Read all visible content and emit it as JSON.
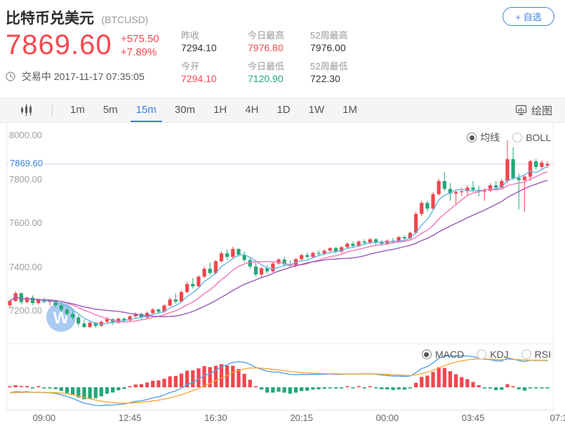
{
  "header": {
    "title": "比特币兑美元",
    "symbol": "(BTCUSD)",
    "price": "7869.60",
    "change": "+575.50",
    "change_pct": "+7.89%",
    "status": "交易中 2017-11-17 07:35:05",
    "watchlist_button": "+ 自选",
    "stats": [
      {
        "label": "昨收",
        "value": "7294.10",
        "color": "#333333"
      },
      {
        "label": "今日最高",
        "value": "7976.80",
        "color": "#f8474e"
      },
      {
        "label": "52周最高",
        "value": "7976.00",
        "color": "#333333"
      },
      {
        "label": "今开",
        "value": "7294.10",
        "color": "#f8474e"
      },
      {
        "label": "今日最低",
        "value": "7120.90",
        "color": "#23a776"
      },
      {
        "label": "52周最低",
        "value": "722.30",
        "color": "#333333"
      }
    ]
  },
  "toolbar": {
    "timeframes": [
      "1m",
      "5m",
      "15m",
      "30m",
      "1H",
      "4H",
      "1D",
      "1W",
      "1M"
    ],
    "selected_timeframe": "15m",
    "draw_label": "绘图"
  },
  "chart": {
    "overlay_options": [
      "均线",
      "BOLL"
    ],
    "overlay_selected": "均线",
    "indicator_options": [
      "MACD",
      "KDJ",
      "RSI"
    ],
    "indicator_selected": "MACD"
  },
  "icons": {
    "clock": "clock-icon",
    "candlestick": "candlestick-chart-icon",
    "draw": "monitor-chart-icon",
    "watermark": "broker-logo-watermark"
  },
  "colors": {
    "up": "#f0464e",
    "down": "#23a776",
    "accent_blue": "#3c7fdb",
    "price_red": "#f8474e",
    "ma5": "#63b6e8",
    "ma10": "#f276b8",
    "ma20": "#9a57ba",
    "macd_dif": "#55a0e6",
    "macd_dea": "#f6a83c",
    "cur_price_line": "#c3d4ea",
    "watermark_blue": "rgba(98,158,229,0.55)"
  },
  "chart_data": {
    "type": "candlestick",
    "symbol": "BTCUSD",
    "interval": "15m",
    "title": "比特币兑美元 (BTCUSD) 15m K线 + MACD",
    "ylim": [
      7050,
      8025
    ],
    "y_ticks": [
      "8000.00",
      "7800.00",
      "7600.00",
      "7400.00",
      "7200.00"
    ],
    "y_tick_values": [
      8000,
      7800,
      7600,
      7400,
      7200
    ],
    "current_price": 7869.6,
    "current_price_label": "7869.60",
    "legend_position": "top-right",
    "x_axis_labels": [
      {
        "label": "09:00",
        "index": 6
      },
      {
        "label": "12:45",
        "index": 21
      },
      {
        "label": "16:30",
        "index": 36
      },
      {
        "label": "20:15",
        "index": 51
      },
      {
        "label": "00:00",
        "index": 66
      },
      {
        "label": "03:45",
        "index": 81
      },
      {
        "label": "07:3",
        "index": 96
      }
    ],
    "overlays": {
      "ma_periods": [
        5,
        10,
        20
      ]
    },
    "indicator": {
      "name": "MACD",
      "params": [
        12,
        26,
        9
      ]
    },
    "candles_ohlc": [
      [
        7225,
        7250,
        7210,
        7245
      ],
      [
        7245,
        7290,
        7240,
        7280
      ],
      [
        7280,
        7285,
        7230,
        7240
      ],
      [
        7240,
        7265,
        7235,
        7260
      ],
      [
        7260,
        7270,
        7225,
        7235
      ],
      [
        7235,
        7255,
        7228,
        7250
      ],
      [
        7250,
        7260,
        7235,
        7240
      ],
      [
        7240,
        7252,
        7225,
        7246
      ],
      [
        7246,
        7250,
        7215,
        7225
      ],
      [
        7225,
        7235,
        7195,
        7205
      ],
      [
        7205,
        7215,
        7175,
        7185
      ],
      [
        7185,
        7200,
        7158,
        7170
      ],
      [
        7170,
        7180,
        7130,
        7142
      ],
      [
        7142,
        7160,
        7121,
        7126
      ],
      [
        7126,
        7152,
        7121,
        7146
      ],
      [
        7146,
        7150,
        7122,
        7132
      ],
      [
        7132,
        7156,
        7126,
        7150
      ],
      [
        7150,
        7172,
        7142,
        7162
      ],
      [
        7162,
        7166,
        7136,
        7146
      ],
      [
        7146,
        7170,
        7141,
        7164
      ],
      [
        7164,
        7170,
        7146,
        7156
      ],
      [
        7156,
        7180,
        7150,
        7175
      ],
      [
        7175,
        7192,
        7166,
        7186
      ],
      [
        7186,
        7190,
        7160,
        7170
      ],
      [
        7170,
        7196,
        7164,
        7190
      ],
      [
        7190,
        7212,
        7182,
        7206
      ],
      [
        7206,
        7212,
        7186,
        7196
      ],
      [
        7196,
        7230,
        7190,
        7224
      ],
      [
        7224,
        7262,
        7220,
        7252
      ],
      [
        7252,
        7280,
        7232,
        7242
      ],
      [
        7242,
        7292,
        7238,
        7286
      ],
      [
        7286,
        7332,
        7280,
        7322
      ],
      [
        7322,
        7350,
        7302,
        7312
      ],
      [
        7312,
        7362,
        7306,
        7356
      ],
      [
        7356,
        7402,
        7350,
        7392
      ],
      [
        7392,
        7420,
        7362,
        7372
      ],
      [
        7372,
        7432,
        7366,
        7426
      ],
      [
        7426,
        7472,
        7420,
        7462
      ],
      [
        7462,
        7480,
        7432,
        7446
      ],
      [
        7446,
        7492,
        7440,
        7482
      ],
      [
        7482,
        7486,
        7446,
        7456
      ],
      [
        7456,
        7470,
        7422,
        7432
      ],
      [
        7432,
        7442,
        7392,
        7402
      ],
      [
        7402,
        7420,
        7356,
        7366
      ],
      [
        7366,
        7400,
        7352,
        7394
      ],
      [
        7394,
        7410,
        7370,
        7380
      ],
      [
        7380,
        7422,
        7374,
        7416
      ],
      [
        7416,
        7440,
        7410,
        7434
      ],
      [
        7434,
        7446,
        7402,
        7412
      ],
      [
        7412,
        7430,
        7396,
        7406
      ],
      [
        7406,
        7440,
        7400,
        7436
      ],
      [
        7436,
        7460,
        7430,
        7454
      ],
      [
        7454,
        7466,
        7436,
        7446
      ],
      [
        7446,
        7470,
        7440,
        7464
      ],
      [
        7464,
        7476,
        7450,
        7460
      ],
      [
        7460,
        7480,
        7454,
        7474
      ],
      [
        7474,
        7490,
        7466,
        7486
      ],
      [
        7486,
        7492,
        7462,
        7470
      ],
      [
        7470,
        7496,
        7464,
        7490
      ],
      [
        7490,
        7512,
        7482,
        7506
      ],
      [
        7506,
        7516,
        7486,
        7496
      ],
      [
        7496,
        7522,
        7490,
        7516
      ],
      [
        7516,
        7526,
        7500,
        7510
      ],
      [
        7510,
        7532,
        7504,
        7526
      ],
      [
        7526,
        7532,
        7502,
        7512
      ],
      [
        7512,
        7522,
        7496,
        7506
      ],
      [
        7506,
        7526,
        7500,
        7520
      ],
      [
        7520,
        7532,
        7506,
        7516
      ],
      [
        7516,
        7542,
        7510,
        7536
      ],
      [
        7536,
        7546,
        7520,
        7530
      ],
      [
        7530,
        7562,
        7526,
        7556
      ],
      [
        7556,
        7652,
        7550,
        7642
      ],
      [
        7642,
        7702,
        7632,
        7692
      ],
      [
        7692,
        7702,
        7652,
        7666
      ],
      [
        7666,
        7742,
        7660,
        7732
      ],
      [
        7732,
        7802,
        7726,
        7792
      ],
      [
        7792,
        7832,
        7746,
        7756
      ],
      [
        7756,
        7782,
        7702,
        7735
      ],
      [
        7735,
        7752,
        7682,
        7742
      ],
      [
        7742,
        7762,
        7722,
        7745
      ],
      [
        7745,
        7772,
        7726,
        7762
      ],
      [
        7762,
        7792,
        7742,
        7752
      ],
      [
        7752,
        7772,
        7722,
        7745
      ],
      [
        7745,
        7762,
        7702,
        7748
      ],
      [
        7748,
        7782,
        7742,
        7772
      ],
      [
        7772,
        7792,
        7752,
        7762
      ],
      [
        7762,
        7802,
        7756,
        7792
      ],
      [
        7792,
        7977,
        7782,
        7892
      ],
      [
        7892,
        7946,
        7796,
        7806
      ],
      [
        7806,
        7826,
        7662,
        7796
      ],
      [
        7796,
        7822,
        7652,
        7812
      ],
      [
        7812,
        7888,
        7792,
        7882
      ],
      [
        7882,
        7892,
        7842,
        7856
      ],
      [
        7856,
        7886,
        7846,
        7876
      ],
      [
        7862,
        7882,
        7852,
        7869.6
      ]
    ]
  }
}
